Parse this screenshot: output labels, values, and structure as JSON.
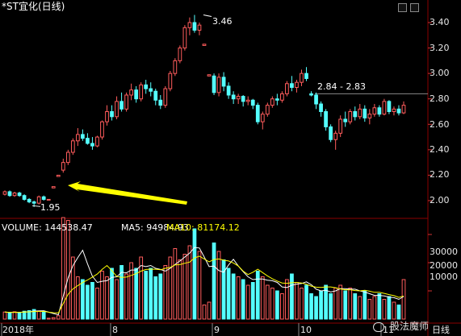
{
  "title": "*ST宜化(日线)",
  "colors": {
    "up": "#ff5c5c",
    "down": "#54ffff",
    "ma5": "#ffffff",
    "ma10": "#ffff00",
    "grid": "#8b0000",
    "arrow": "#ffff00"
  },
  "price_axis": {
    "ticks": [
      "3.40",
      "3.20",
      "3.00",
      "2.80",
      "2.60",
      "2.40",
      "2.20",
      "2.00"
    ]
  },
  "annotations": {
    "high": "3.46",
    "low": "1.95",
    "range": "2.84 - 2.83"
  },
  "volume_panel": {
    "volume_label": "VOLUME: 144538.47",
    "ma5_label": "MA5: 94984.93",
    "ma10_label": "MA10: 81174.12",
    "ticks": [
      "30000",
      "20000",
      "10000"
    ]
  },
  "date_axis": {
    "labels": [
      "2018年",
      "8",
      "9",
      "10",
      "11"
    ],
    "period": "日线"
  },
  "watermark": "股法魔师",
  "chart_data": {
    "type": "candlestick",
    "ylim": [
      1.92,
      3.52
    ],
    "candles": [
      [
        2.05,
        2.08,
        2.04,
        2.07
      ],
      [
        2.07,
        2.08,
        2.03,
        2.04
      ],
      [
        2.04,
        2.07,
        2.03,
        2.06
      ],
      [
        2.06,
        2.07,
        2.03,
        2.04
      ],
      [
        2.04,
        2.05,
        2.0,
        2.01
      ],
      [
        2.01,
        2.02,
        1.98,
        1.99
      ],
      [
        1.99,
        2.0,
        1.95,
        1.98
      ],
      [
        1.98,
        2.04,
        1.97,
        2.03
      ],
      [
        2.03,
        2.04,
        2.0,
        2.01
      ],
      [
        2.01,
        2.01,
        2.01,
        2.01
      ],
      [
        2.1,
        2.11,
        2.1,
        2.11
      ],
      [
        2.19,
        2.2,
        2.19,
        2.2
      ],
      [
        2.24,
        2.33,
        2.22,
        2.3
      ],
      [
        2.3,
        2.4,
        2.28,
        2.38
      ],
      [
        2.38,
        2.49,
        2.36,
        2.47
      ],
      [
        2.47,
        2.57,
        2.43,
        2.52
      ],
      [
        2.52,
        2.56,
        2.47,
        2.49
      ],
      [
        2.49,
        2.53,
        2.44,
        2.45
      ],
      [
        2.45,
        2.5,
        2.4,
        2.43
      ],
      [
        2.43,
        2.51,
        2.42,
        2.5
      ],
      [
        2.5,
        2.63,
        2.48,
        2.62
      ],
      [
        2.62,
        2.75,
        2.59,
        2.7
      ],
      [
        2.7,
        2.75,
        2.63,
        2.66
      ],
      [
        2.66,
        2.82,
        2.64,
        2.78
      ],
      [
        2.78,
        2.85,
        2.7,
        2.72
      ],
      [
        2.72,
        2.85,
        2.7,
        2.83
      ],
      [
        2.83,
        2.92,
        2.79,
        2.87
      ],
      [
        2.87,
        2.9,
        2.77,
        2.8
      ],
      [
        2.8,
        2.93,
        2.78,
        2.91
      ],
      [
        2.91,
        2.95,
        2.84,
        2.88
      ],
      [
        2.88,
        2.93,
        2.82,
        2.86
      ],
      [
        2.86,
        2.88,
        2.75,
        2.79
      ],
      [
        2.79,
        2.83,
        2.72,
        2.75
      ],
      [
        2.75,
        2.9,
        2.73,
        2.88
      ],
      [
        2.88,
        3.02,
        2.86,
        3.0
      ],
      [
        3.0,
        3.12,
        2.98,
        3.1
      ],
      [
        3.1,
        3.22,
        3.08,
        3.2
      ],
      [
        3.2,
        3.38,
        3.18,
        3.36
      ],
      [
        3.36,
        3.44,
        3.3,
        3.4
      ],
      [
        3.4,
        3.46,
        3.32,
        3.34
      ],
      [
        3.34,
        3.4,
        3.3,
        3.38
      ],
      [
        3.22,
        3.23,
        3.22,
        3.23
      ],
      [
        2.98,
        2.99,
        2.98,
        2.99
      ],
      [
        2.98,
        3.0,
        2.83,
        2.85
      ],
      [
        2.85,
        3.0,
        2.82,
        2.97
      ],
      [
        2.97,
        3.01,
        2.86,
        2.9
      ],
      [
        2.9,
        2.93,
        2.8,
        2.83
      ],
      [
        2.83,
        2.86,
        2.76,
        2.8
      ],
      [
        2.8,
        2.84,
        2.76,
        2.82
      ],
      [
        2.82,
        2.83,
        2.74,
        2.78
      ],
      [
        2.78,
        2.82,
        2.75,
        2.79
      ],
      [
        2.79,
        2.8,
        2.72,
        2.75
      ],
      [
        2.75,
        2.77,
        2.6,
        2.62
      ],
      [
        2.62,
        2.7,
        2.56,
        2.68
      ],
      [
        2.68,
        2.77,
        2.66,
        2.75
      ],
      [
        2.75,
        2.82,
        2.73,
        2.8
      ],
      [
        2.8,
        2.84,
        2.75,
        2.79
      ],
      [
        2.79,
        2.86,
        2.77,
        2.84
      ],
      [
        2.84,
        2.94,
        2.82,
        2.92
      ],
      [
        2.92,
        2.98,
        2.86,
        2.89
      ],
      [
        2.89,
        2.95,
        2.85,
        2.93
      ],
      [
        2.93,
        3.03,
        2.9,
        3.0
      ],
      [
        3.0,
        3.05,
        2.94,
        2.96
      ],
      [
        2.84,
        2.86,
        2.82,
        2.83
      ],
      [
        2.83,
        2.85,
        2.72,
        2.76
      ],
      [
        2.76,
        2.78,
        2.66,
        2.7
      ],
      [
        2.7,
        2.72,
        2.55,
        2.58
      ],
      [
        2.58,
        2.6,
        2.46,
        2.48
      ],
      [
        2.48,
        2.55,
        2.4,
        2.53
      ],
      [
        2.53,
        2.67,
        2.5,
        2.64
      ],
      [
        2.64,
        2.7,
        2.58,
        2.62
      ],
      [
        2.62,
        2.72,
        2.6,
        2.7
      ],
      [
        2.7,
        2.74,
        2.63,
        2.66
      ],
      [
        2.66,
        2.76,
        2.64,
        2.72
      ],
      [
        2.72,
        2.75,
        2.62,
        2.65
      ],
      [
        2.65,
        2.72,
        2.6,
        2.68
      ],
      [
        2.68,
        2.76,
        2.66,
        2.73
      ],
      [
        2.73,
        2.75,
        2.66,
        2.68
      ],
      [
        2.68,
        2.8,
        2.67,
        2.78
      ],
      [
        2.78,
        2.79,
        2.68,
        2.7
      ],
      [
        2.7,
        2.74,
        2.67,
        2.72
      ],
      [
        2.72,
        2.75,
        2.67,
        2.69
      ],
      [
        2.69,
        2.78,
        2.68,
        2.75
      ]
    ],
    "volume": [
      2500,
      2200,
      2600,
      2300,
      2800,
      3000,
      3400,
      2900,
      2700,
      300,
      500,
      1200,
      36000,
      35000,
      22000,
      15000,
      14000,
      12000,
      13000,
      11000,
      17000,
      15000,
      18000,
      14000,
      19000,
      16000,
      20000,
      18000,
      22000,
      17000,
      18000,
      15000,
      16000,
      19000,
      22000,
      25000,
      21000,
      23000,
      26000,
      32000,
      24000,
      5000,
      6000,
      27000,
      24000,
      21000,
      18000,
      16000,
      15000,
      14000,
      12000,
      13000,
      17000,
      15000,
      12000,
      11000,
      10000,
      9000,
      14000,
      16000,
      13000,
      11000,
      12000,
      9000,
      8000,
      10000,
      12000,
      9000,
      11000,
      12000,
      10000,
      11000,
      9000,
      8000,
      10000,
      7000,
      8000,
      9000,
      7000,
      8000,
      6000,
      5000,
      14000
    ]
  }
}
